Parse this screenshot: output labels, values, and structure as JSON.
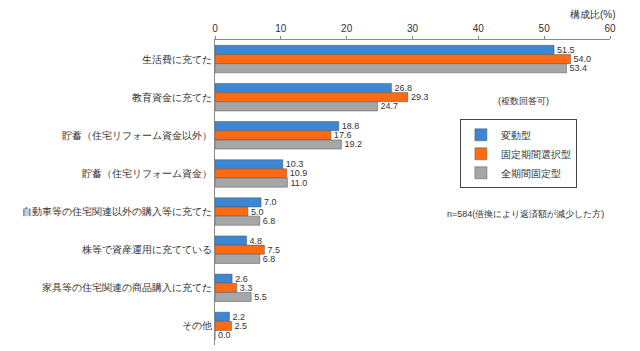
{
  "chart_data": {
    "type": "bar",
    "orientation": "horizontal",
    "x_label": "構成比(%)",
    "annotations": [
      "(複数回答可)",
      "n=584(借換により返済額が減少した方)"
    ],
    "categories": [
      "生活費に充てた",
      "教育資金に充てた",
      "貯蓄（住宅リフォーム資金以外）",
      "貯蓄（住宅リフォーム資金）",
      "自動車等の住宅関連以外の購入等に充てた",
      "株等で資産運用に充てている",
      "家具等の住宅関連の商品購入に充てた",
      "その他"
    ],
    "series": [
      {
        "name": "変動型",
        "color": "#3a87d6",
        "values": [
          51.5,
          26.8,
          18.8,
          10.3,
          7.0,
          4.8,
          2.6,
          2.2
        ],
        "value_labels": [
          "51.5",
          "26.8",
          "18.8",
          "10.3",
          "7.0",
          "4.8",
          "2.6",
          "2.2"
        ]
      },
      {
        "name": "固定期間選択型",
        "color": "#ff6a13",
        "values": [
          54.0,
          29.3,
          17.6,
          10.9,
          5.0,
          7.5,
          3.3,
          2.5
        ],
        "value_labels": [
          "54.0",
          "29.3",
          "17.6",
          "10.9",
          "5.0",
          "7.5",
          "3.3",
          "2.5"
        ]
      },
      {
        "name": "全期間固定型",
        "color": "#a6a6a6",
        "values": [
          53.4,
          24.7,
          19.2,
          11.0,
          6.8,
          6.8,
          5.5,
          0.0
        ],
        "value_labels": [
          "53.4",
          "24.7",
          "19.2",
          "11.0",
          "6.8",
          "6.8",
          "5.5",
          "0.0"
        ]
      }
    ],
    "xlim": [
      0,
      60
    ],
    "xticks": [
      0,
      10,
      20,
      30,
      40,
      50,
      60
    ],
    "grid": false,
    "legend": "right",
    "data_labels": true
  }
}
